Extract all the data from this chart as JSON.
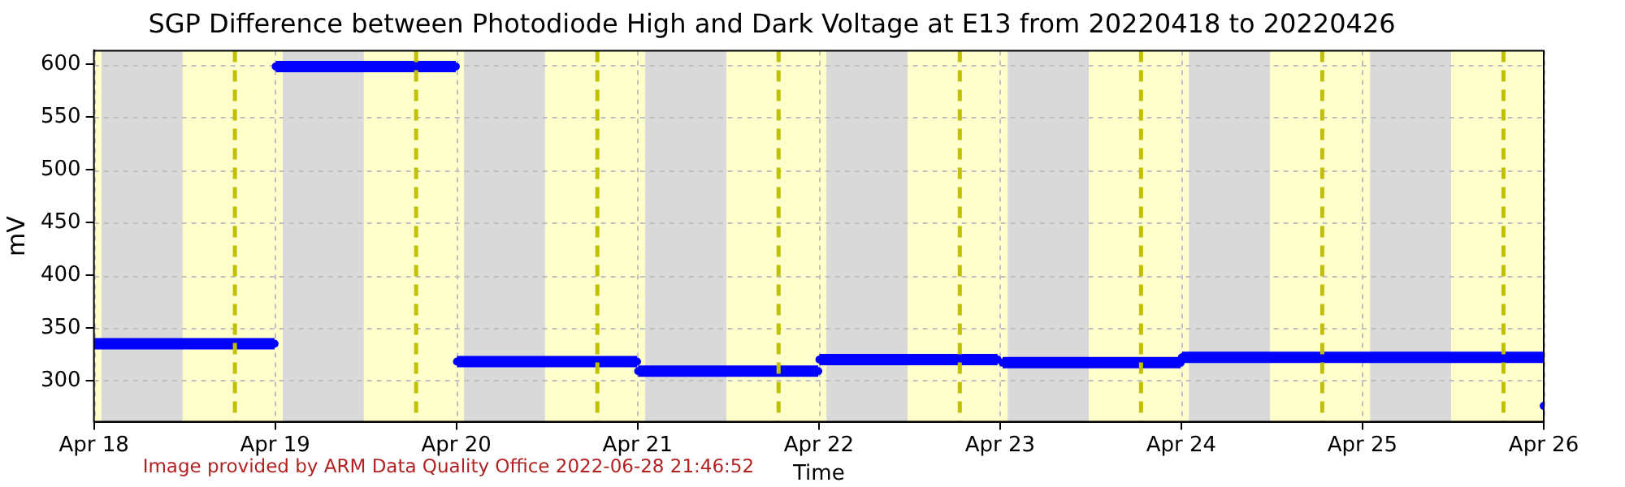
{
  "chart_data": {
    "type": "line",
    "title": "SGP Difference between Photodiode High and Dark Voltage at E13 from 20220418 to 20220426",
    "xlabel": "Time",
    "ylabel": "mV",
    "annotations": [
      "Image provided by ARM Data Quality Office 2022-06-28 21:46:52"
    ],
    "x": [
      "2022-04-18T00:00",
      "2022-04-18T23:55",
      "2022-04-19T00:00",
      "2022-04-19T00:05",
      "2022-04-19T23:55",
      "2022-04-20T00:00",
      "2022-04-20T00:05",
      "2022-04-20T23:55",
      "2022-04-21T00:00",
      "2022-04-21T00:05",
      "2022-04-21T23:55",
      "2022-04-22T00:00",
      "2022-04-22T00:05",
      "2022-04-22T23:40",
      "2022-04-23T00:00",
      "2022-04-23T00:20",
      "2022-04-23T23:55",
      "2022-04-24T00:00",
      "2022-04-24T00:05",
      "2022-04-25T00:00",
      "2022-04-25T23:55",
      "2022-04-25T23:58",
      "2022-04-26T00:00"
    ],
    "values": [
      335,
      335,
      null,
      598,
      598,
      null,
      318,
      318,
      null,
      309,
      309,
      null,
      320,
      320,
      null,
      317,
      317,
      null,
      322,
      322,
      322,
      null,
      276
    ],
    "color": "#0000ff",
    "marker": "circle",
    "line_style": "solid",
    "grid": true,
    "xlim": [
      "2022-04-18",
      "2022-04-26"
    ],
    "ylim": [
      261,
      613
    ],
    "xticks": [
      {
        "value": "2022-04-18",
        "label": "Apr 18"
      },
      {
        "value": "2022-04-19",
        "label": "Apr 19"
      },
      {
        "value": "2022-04-20",
        "label": "Apr 20"
      },
      {
        "value": "2022-04-21",
        "label": "Apr 21"
      },
      {
        "value": "2022-04-22",
        "label": "Apr 22"
      },
      {
        "value": "2022-04-23",
        "label": "Apr 23"
      },
      {
        "value": "2022-04-24",
        "label": "Apr 24"
      },
      {
        "value": "2022-04-25",
        "label": "Apr 25"
      },
      {
        "value": "2022-04-26",
        "label": "Apr 26"
      }
    ],
    "yticks": [
      300,
      350,
      400,
      450,
      500,
      550,
      600
    ],
    "bands": [
      {
        "axis": "x",
        "from": "2022-04-18T00:00",
        "to": "2022-04-18T01:00",
        "color": "#ffffcc"
      },
      {
        "axis": "x",
        "from": "2022-04-18T01:00",
        "to": "2022-04-18T11:45",
        "color": "#d9d9d9"
      },
      {
        "axis": "x",
        "from": "2022-04-18T11:45",
        "to": "2022-04-19T01:00",
        "color": "#ffffcc"
      },
      {
        "axis": "x",
        "from": "2022-04-19T01:00",
        "to": "2022-04-19T11:45",
        "color": "#d9d9d9"
      },
      {
        "axis": "x",
        "from": "2022-04-19T11:45",
        "to": "2022-04-20T01:00",
        "color": "#ffffcc"
      },
      {
        "axis": "x",
        "from": "2022-04-20T01:00",
        "to": "2022-04-20T11:45",
        "color": "#d9d9d9"
      },
      {
        "axis": "x",
        "from": "2022-04-20T11:45",
        "to": "2022-04-21T01:00",
        "color": "#ffffcc"
      },
      {
        "axis": "x",
        "from": "2022-04-21T01:00",
        "to": "2022-04-21T11:45",
        "color": "#d9d9d9"
      },
      {
        "axis": "x",
        "from": "2022-04-21T11:45",
        "to": "2022-04-22T01:00",
        "color": "#ffffcc"
      },
      {
        "axis": "x",
        "from": "2022-04-22T01:00",
        "to": "2022-04-22T11:45",
        "color": "#d9d9d9"
      },
      {
        "axis": "x",
        "from": "2022-04-22T11:45",
        "to": "2022-04-23T01:00",
        "color": "#ffffcc"
      },
      {
        "axis": "x",
        "from": "2022-04-23T01:00",
        "to": "2022-04-23T11:45",
        "color": "#d9d9d9"
      },
      {
        "axis": "x",
        "from": "2022-04-23T11:45",
        "to": "2022-04-24T01:00",
        "color": "#ffffcc"
      },
      {
        "axis": "x",
        "from": "2022-04-24T01:00",
        "to": "2022-04-24T11:45",
        "color": "#d9d9d9"
      },
      {
        "axis": "x",
        "from": "2022-04-24T11:45",
        "to": "2022-04-25T01:00",
        "color": "#ffffcc"
      },
      {
        "axis": "x",
        "from": "2022-04-25T01:00",
        "to": "2022-04-25T11:45",
        "color": "#d9d9d9"
      },
      {
        "axis": "x",
        "from": "2022-04-25T11:45",
        "to": "2022-04-26T00:00",
        "color": "#ffffcc"
      }
    ],
    "ref_lines": [
      {
        "axis": "x",
        "value": "2022-04-18T18:40",
        "color": "#c0c000",
        "line_style": "dashed"
      },
      {
        "axis": "x",
        "value": "2022-04-19T18:40",
        "color": "#c0c000",
        "line_style": "dashed"
      },
      {
        "axis": "x",
        "value": "2022-04-20T18:40",
        "color": "#c0c000",
        "line_style": "dashed"
      },
      {
        "axis": "x",
        "value": "2022-04-21T18:40",
        "color": "#c0c000",
        "line_style": "dashed"
      },
      {
        "axis": "x",
        "value": "2022-04-22T18:40",
        "color": "#c0c000",
        "line_style": "dashed"
      },
      {
        "axis": "x",
        "value": "2022-04-23T18:40",
        "color": "#c0c000",
        "line_style": "dashed"
      },
      {
        "axis": "x",
        "value": "2022-04-24T18:40",
        "color": "#c0c000",
        "line_style": "dashed"
      },
      {
        "axis": "x",
        "value": "2022-04-25T18:40",
        "color": "#c0c000",
        "line_style": "dashed"
      }
    ]
  }
}
